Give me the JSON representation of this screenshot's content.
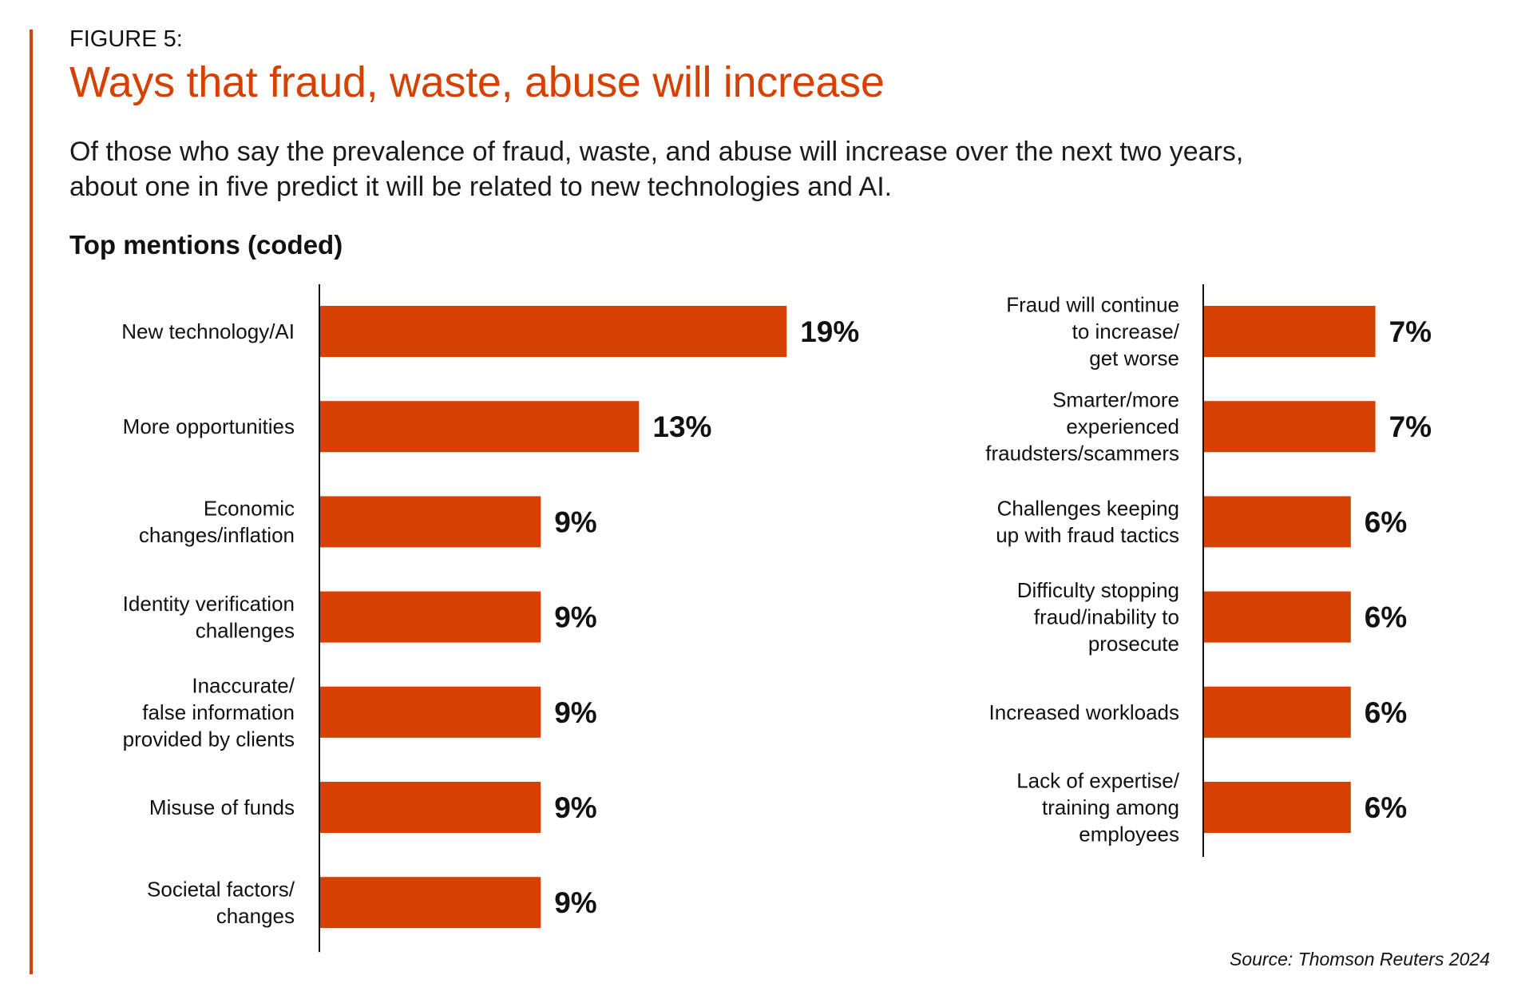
{
  "header": {
    "figure_label": "FIGURE 5:",
    "title": "Ways that fraud, waste, abuse will increase",
    "subtitle_line1": "Of those who say the prevalence of fraud, waste, and abuse will increase over the next two years,",
    "subtitle_line2": "about one in five predict it will be related to new technologies and AI.",
    "section_heading": "Top mentions (coded)"
  },
  "source": "Source: Thomson Reuters 2024",
  "colors": {
    "accent": "#d64000",
    "bar": "#d64000",
    "text": "#111111"
  },
  "chart_data": {
    "type": "bar",
    "orientation": "horizontal",
    "title": "Ways that fraud, waste, abuse will increase",
    "subtitle": "Top mentions (coded)",
    "unit": "%",
    "xlabel": "",
    "ylabel": "",
    "grid": false,
    "legend": "none",
    "panels": [
      {
        "name": "left",
        "categories": [
          [
            "New technology/AI"
          ],
          [
            "More opportunities"
          ],
          [
            "Economic",
            "changes/inflation"
          ],
          [
            "Identity verification",
            "challenges"
          ],
          [
            "Inaccurate/",
            "false information",
            "provided by clients"
          ],
          [
            "Misuse of funds"
          ],
          [
            "Societal factors/",
            "changes"
          ]
        ],
        "values": [
          19,
          13,
          9,
          9,
          9,
          9,
          9
        ],
        "value_labels": [
          "19%",
          "13%",
          "9%",
          "9%",
          "9%",
          "9%",
          "9%"
        ]
      },
      {
        "name": "right",
        "categories": [
          [
            "Fraud will continue",
            "to increase/",
            "get worse"
          ],
          [
            "Smarter/more",
            "experienced",
            "fraudsters/scammers"
          ],
          [
            "Challenges keeping",
            "up with fraud tactics"
          ],
          [
            "Difficulty stopping",
            "fraud/inability to",
            "prosecute"
          ],
          [
            "Increased workloads"
          ],
          [
            "Lack of expertise/",
            "training among",
            "employees"
          ]
        ],
        "values": [
          7,
          7,
          6,
          6,
          6,
          6
        ],
        "value_labels": [
          "7%",
          "7%",
          "6%",
          "6%",
          "6%",
          "6%"
        ]
      }
    ]
  }
}
